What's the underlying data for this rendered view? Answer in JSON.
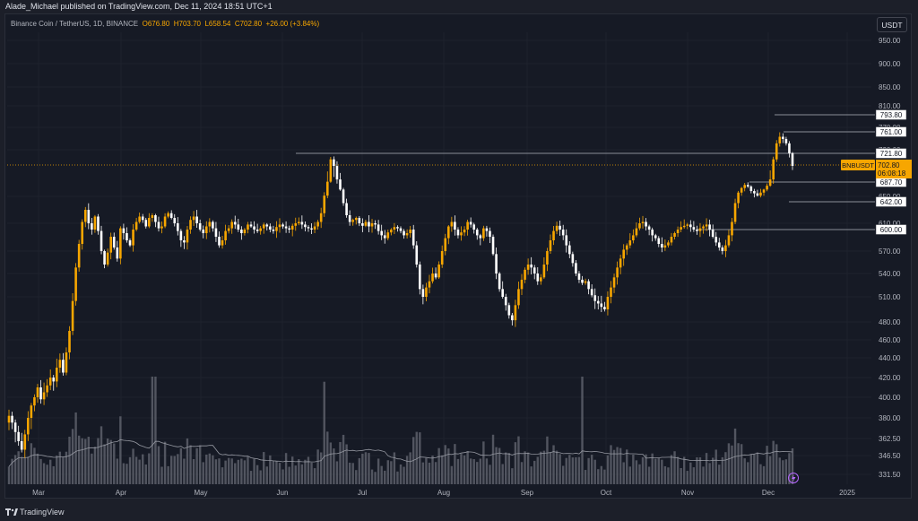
{
  "header": {
    "published": "Alade_Michael published on TradingView.com, Dec 11, 2024 18:51 UTC+1"
  },
  "legend": {
    "symbol": "Binance Coin / TetherUS, 1D, BINANCE",
    "open": "O676.80",
    "high": "H703.70",
    "low": "L658.54",
    "close": "C702.80",
    "change": "+26.00 (+3.84%)"
  },
  "currency": "USDT",
  "footer": {
    "brand": "TradingView"
  },
  "colors": {
    "up": "#f7a600",
    "down": "#ffffff",
    "volume": "#5d606b",
    "grid": "#1e222d",
    "bg": "#161a25"
  },
  "chart_data": {
    "type": "candlestick",
    "symbol": "BNBUSDT",
    "last_price": "702.80",
    "countdown": "06:08:18",
    "x_labels": [
      "Mar",
      "Apr",
      "May",
      "Jun",
      "Jul",
      "Aug",
      "Sep",
      "Oct",
      "Nov",
      "Dec",
      "2025"
    ],
    "y_ticks": [
      "950.00",
      "900.00",
      "850.00",
      "810.00",
      "770.00",
      "720.00",
      "650.00",
      "610.00",
      "570.00",
      "540.00",
      "510.00",
      "480.00",
      "460.00",
      "440.00",
      "420.00",
      "400.00",
      "380.00",
      "362.50",
      "346.50",
      "331.50"
    ],
    "levels": [
      {
        "label": "793.80",
        "value": 793.8
      },
      {
        "label": "761.00",
        "value": 761.0
      },
      {
        "label": "721.80",
        "value": 721.8
      },
      {
        "label": "687.70",
        "value": 687.7
      },
      {
        "label": "642.00",
        "value": 642.0
      },
      {
        "label": "600.00",
        "value": 600.0
      }
    ],
    "closes": [
      382,
      376,
      368,
      360,
      352,
      366,
      380,
      392,
      400,
      410,
      398,
      405,
      412,
      420,
      416,
      430,
      438,
      425,
      446,
      470,
      505,
      548,
      580,
      612,
      630,
      610,
      600,
      620,
      598,
      570,
      552,
      568,
      590,
      575,
      560,
      602,
      595,
      585,
      578,
      600,
      612,
      620,
      615,
      605,
      618,
      622,
      612,
      602,
      605,
      620,
      625,
      618,
      610,
      598,
      585,
      582,
      600,
      615,
      620,
      610,
      600,
      595,
      605,
      612,
      602,
      590,
      578,
      585,
      598,
      602,
      612,
      608,
      600,
      595,
      600,
      608,
      605,
      600,
      598,
      602,
      608,
      605,
      600,
      598,
      604,
      608,
      605,
      602,
      600,
      606,
      610,
      612,
      608,
      604,
      602,
      600,
      605,
      612,
      625,
      652,
      688,
      712,
      702,
      690,
      668,
      640,
      622,
      612,
      615,
      618,
      610,
      606,
      612,
      605,
      610,
      608,
      598,
      592,
      588,
      596,
      600,
      604,
      602,
      598,
      592,
      595,
      600,
      578,
      552,
      520,
      510,
      522,
      530,
      540,
      535,
      552,
      570,
      588,
      605,
      612,
      600,
      592,
      596,
      600,
      612,
      608,
      600,
      592,
      588,
      602,
      598,
      590,
      566,
      540,
      520,
      510,
      500,
      488,
      482,
      500,
      520,
      532,
      545,
      552,
      548,
      540,
      530,
      535,
      552,
      570,
      585,
      598,
      606,
      600,
      592,
      578,
      566,
      554,
      540,
      532,
      528,
      530,
      520,
      512,
      505,
      502,
      498,
      495,
      510,
      522,
      535,
      548,
      560,
      572,
      578,
      585,
      592,
      602,
      610,
      612,
      605,
      600,
      592,
      588,
      580,
      575,
      578,
      582,
      590,
      595,
      600,
      604,
      606,
      608,
      604,
      600,
      598,
      602,
      605,
      608,
      600,
      590,
      582,
      575,
      570,
      578,
      592,
      612,
      640,
      660,
      672,
      680,
      676,
      664,
      658,
      652,
      660,
      668,
      678,
      690,
      712,
      740,
      752,
      748,
      740,
      722,
      702
    ]
  }
}
